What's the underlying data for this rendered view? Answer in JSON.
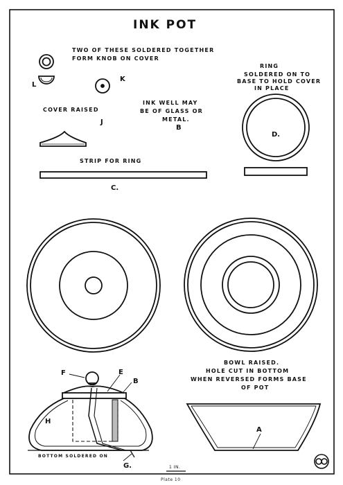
{
  "title": "INK POT",
  "notes": {
    "knob_1": "TWO OF THESE SOLDERED TOGETHER",
    "knob_2": "FORM KNOB ON COVER",
    "ring_1": "RING",
    "ring_2": "SOLDERED ON TO",
    "ring_3": "BASE TO HOLD COVER",
    "ring_4": "IN PLACE",
    "well_1": "INK WELL MAY",
    "well_2": "BE OF GLASS OR",
    "well_3": "METAL.",
    "cover": "COVER RAISED",
    "strip": "STRIP FOR RING",
    "bowl_1": "BOWL RAISED.",
    "bowl_2": "HOLE CUT IN BOTTOM",
    "bowl_3": "WHEN REVERSED FORMS BASE",
    "bowl_4": "OF POT",
    "bottom": "BOTTOM SOLDERED ON"
  },
  "letters": {
    "L": "L",
    "K": "K",
    "J": "J",
    "B1": "B",
    "D": "D.",
    "C": "C.",
    "F": "F",
    "E": "E",
    "B2": "B",
    "H": "H",
    "G": "G.",
    "A": "A"
  },
  "scale_label": "1 IN.",
  "caption": "Plate 10",
  "monogram": "monogram-icon"
}
